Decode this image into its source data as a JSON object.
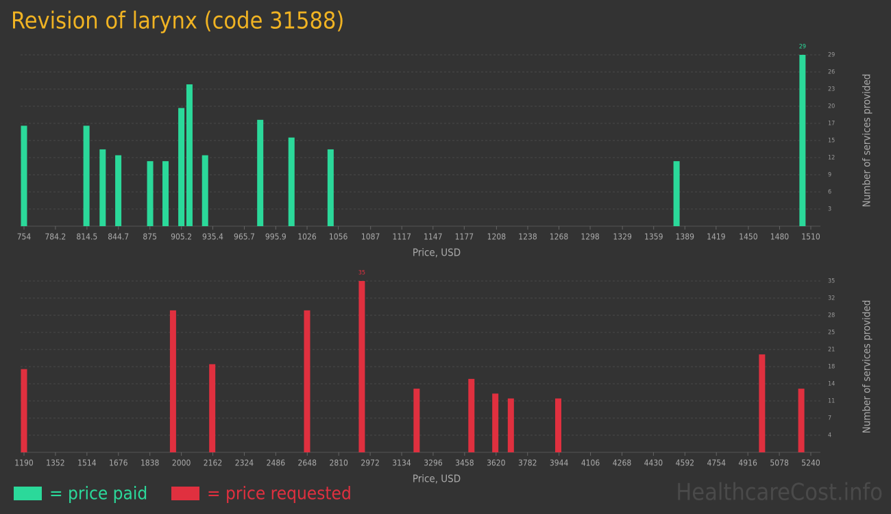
{
  "title": "Revision of larynx (code 31588)",
  "watermark": "HealthcareCost.info",
  "chart_data": [
    {
      "type": "bar",
      "xlabel": "Price, USD",
      "ylabel": "Number of services provided",
      "x": [
        754,
        814,
        829.6,
        844.6,
        875.2,
        890,
        905.2,
        913,
        928,
        981,
        1011,
        1048.6,
        1381,
        1502
      ],
      "series": [
        {
          "name": "= price paid",
          "color": "#2bd99a",
          "values": [
            17,
            17,
            13,
            12,
            11,
            11,
            20,
            24,
            12,
            18,
            15,
            13,
            11,
            29
          ]
        }
      ],
      "xlim": [
        754,
        1510
      ],
      "xticks": [
        754,
        784.2,
        814.5,
        844.7,
        875,
        905.2,
        935.4,
        965.7,
        995.9,
        1026,
        1056,
        1087,
        1117,
        1147,
        1177,
        1208,
        1238,
        1268,
        1298,
        1329,
        1359,
        1389,
        1419,
        1450,
        1480,
        1510
      ],
      "ylim": [
        0,
        29
      ],
      "yticks": [
        {
          "value": 2.9,
          "label": "3"
        },
        {
          "value": 5.8,
          "label": "6"
        },
        {
          "value": 8.7,
          "label": "9"
        },
        {
          "value": 11.6,
          "label": "12"
        },
        {
          "value": 14.5,
          "label": "15"
        },
        {
          "value": 17.4,
          "label": "17"
        },
        {
          "value": 20.3,
          "label": "20"
        },
        {
          "value": 23.2,
          "label": "23"
        },
        {
          "value": 26.1,
          "label": "26"
        },
        29
      ],
      "grid": true
    },
    {
      "type": "bar",
      "xlabel": "Price, USD",
      "ylabel": "Number of services provided",
      "x": [
        1190,
        1957,
        2159,
        2647,
        2929,
        3211,
        3493,
        3616,
        3696,
        3940,
        4989,
        5191
      ],
      "series": [
        {
          "name": "= price requested",
          "color": "#e0303f",
          "values": [
            17,
            29,
            18,
            29,
            35,
            13,
            15,
            12,
            11,
            11,
            20,
            13
          ]
        }
      ],
      "xlim": [
        1190,
        5240
      ],
      "xticks": [
        1190,
        1352,
        1514,
        1676,
        1838,
        2000,
        2162,
        2324,
        2486,
        2648,
        2810,
        2972,
        3134,
        3296,
        3458,
        3620,
        3782,
        3944,
        4106,
        4268,
        4430,
        4592,
        4754,
        4916,
        5078,
        5240
      ],
      "ylim": [
        0,
        35
      ],
      "yticks": [
        {
          "value": 3.5,
          "label": "4"
        },
        {
          "value": 7,
          "label": "7"
        },
        {
          "value": 10.5,
          "label": "11"
        },
        14,
        {
          "value": 17.5,
          "label": "18"
        },
        21,
        {
          "value": 24.5,
          "label": "25"
        },
        28,
        {
          "value": 31.5,
          "label": "32"
        },
        35
      ],
      "grid": true
    }
  ]
}
